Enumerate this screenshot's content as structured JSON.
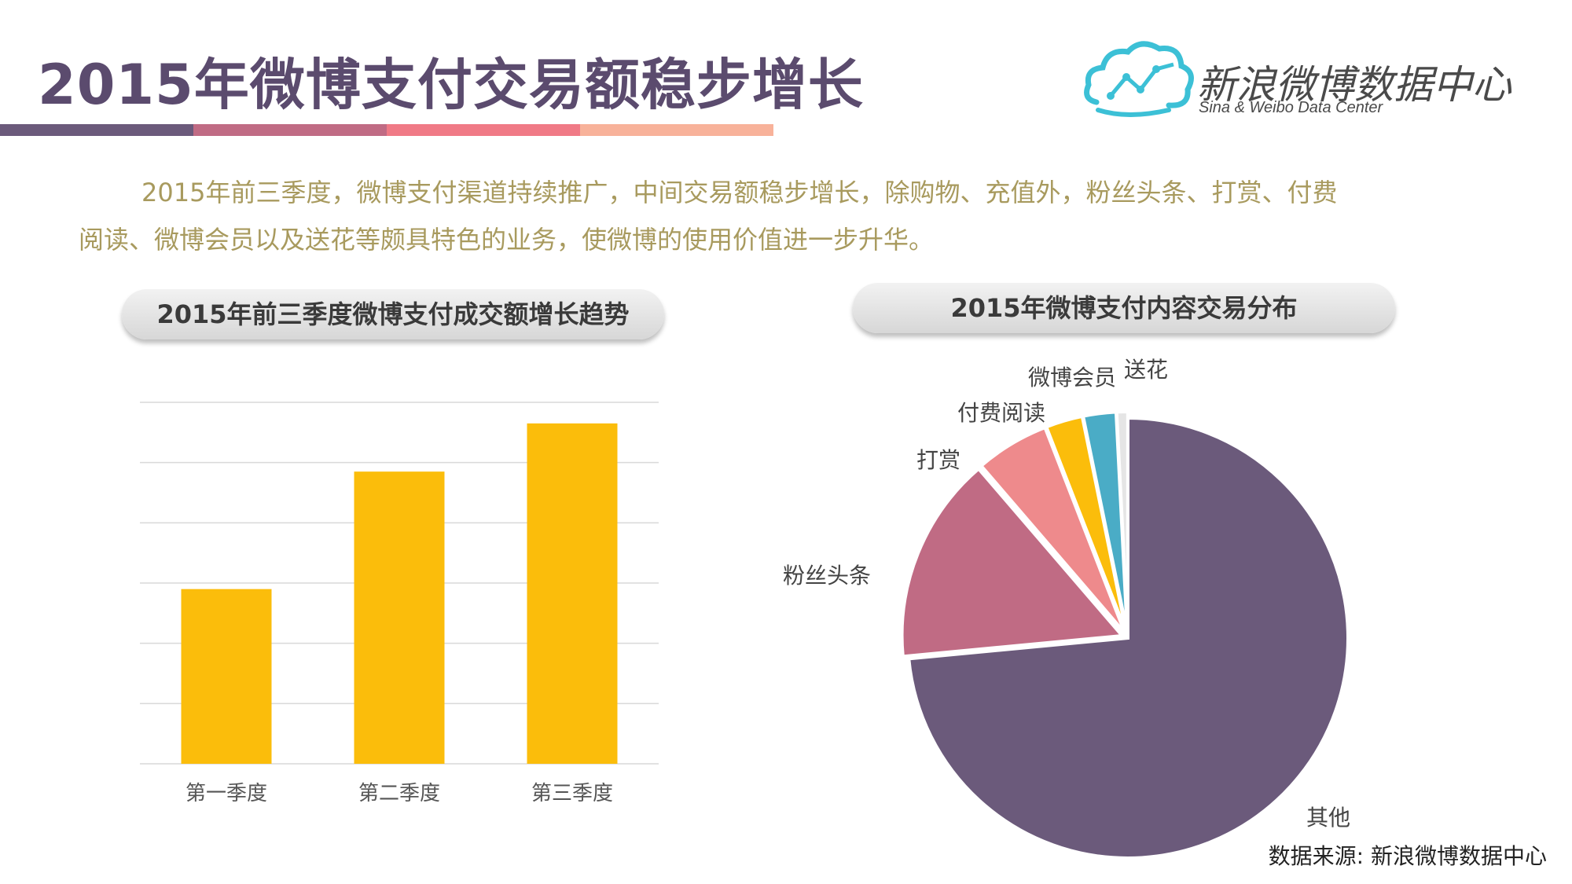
{
  "header": {
    "title": "2015年微博支付交易额稳步增长",
    "stripe_colors": [
      "#6b5a7b",
      "#c06b84",
      "#f07a86",
      "#f8b29a"
    ]
  },
  "logo": {
    "name_cn": "新浪微博数据中心",
    "name_en": "Sina & Weibo Data Center",
    "icon": "cloud-chart-icon",
    "color": "#3cc0d6"
  },
  "intro": {
    "line1": "2015年前三季度，微博支付渠道持续推广，中间交易额稳步增长，除购物、充值外，粉丝头条、打赏、付费",
    "line2": "阅读、微博会员以及送花等颇具特色的业务，使微博的使用价值进一步升华。"
  },
  "charts_titles": {
    "bar": "2015年前三季度微博支付成交额增长趋势",
    "pie": "2015年微博支付内容交易分布"
  },
  "chart_data": [
    {
      "type": "bar",
      "title": "2015年前三季度微博支付成交额增长趋势",
      "categories": [
        "第一季度",
        "第二季度",
        "第三季度"
      ],
      "values": [
        2.9,
        4.85,
        5.65
      ],
      "ylim": [
        0,
        6
      ],
      "grid": true,
      "color": "#fbbd0b"
    },
    {
      "type": "pie",
      "title": "2015年微博支付内容交易分布",
      "labels": [
        "其他",
        "粉丝头条",
        "打赏",
        "付费阅读",
        "微博会员",
        "送花"
      ],
      "values": [
        73.5,
        15.2,
        5.4,
        2.7,
        2.4,
        0.8
      ],
      "colors": [
        "#6b5a7b",
        "#c06b84",
        "#ee8a8c",
        "#fbbd0b",
        "#4aacc6",
        "#e5e5e5"
      ]
    }
  ],
  "source": "数据来源: 新浪微博数据中心"
}
